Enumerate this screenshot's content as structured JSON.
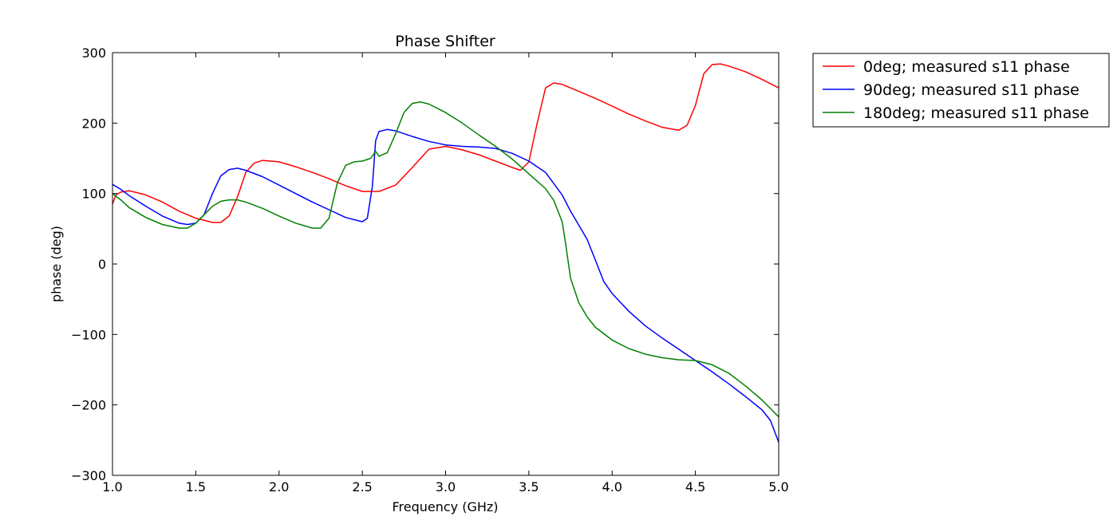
{
  "chart_data": {
    "type": "line",
    "title": "Phase Shifter",
    "xlabel": "Frequency (GHz)",
    "ylabel": "phase (deg)",
    "xlim": [
      1.0,
      5.0
    ],
    "ylim": [
      -300,
      300
    ],
    "x_ticks": [
      1.0,
      1.5,
      2.0,
      2.5,
      3.0,
      3.5,
      4.0,
      4.5,
      5.0
    ],
    "x_tick_labels": [
      "1.0",
      "1.5",
      "2.0",
      "2.5",
      "3.0",
      "3.5",
      "4.0",
      "4.5",
      "5.0"
    ],
    "y_ticks": [
      300,
      200,
      100,
      0,
      -100,
      -200,
      -300
    ],
    "y_tick_labels": [
      "300",
      "200",
      "100",
      "0",
      "−100",
      "−200",
      "−300"
    ],
    "grid": false,
    "legend_position": "outside-right-top",
    "series": [
      {
        "name": "0deg; measured s11 phase",
        "color": "#ff0000",
        "points": [
          [
            1.0,
            85
          ],
          [
            1.02,
            98
          ],
          [
            1.05,
            102
          ],
          [
            1.1,
            104
          ],
          [
            1.2,
            98
          ],
          [
            1.3,
            88
          ],
          [
            1.4,
            75
          ],
          [
            1.5,
            65
          ],
          [
            1.6,
            59
          ],
          [
            1.65,
            59
          ],
          [
            1.7,
            68
          ],
          [
            1.75,
            95
          ],
          [
            1.8,
            130
          ],
          [
            1.85,
            143
          ],
          [
            1.9,
            147
          ],
          [
            2.0,
            145
          ],
          [
            2.1,
            138
          ],
          [
            2.2,
            130
          ],
          [
            2.3,
            121
          ],
          [
            2.4,
            111
          ],
          [
            2.5,
            103
          ],
          [
            2.6,
            103
          ],
          [
            2.7,
            112
          ],
          [
            2.8,
            137
          ],
          [
            2.9,
            163
          ],
          [
            3.0,
            167
          ],
          [
            3.1,
            162
          ],
          [
            3.2,
            155
          ],
          [
            3.3,
            146
          ],
          [
            3.4,
            137
          ],
          [
            3.45,
            133
          ],
          [
            3.5,
            145
          ],
          [
            3.55,
            200
          ],
          [
            3.6,
            250
          ],
          [
            3.65,
            257
          ],
          [
            3.7,
            255
          ],
          [
            3.8,
            245
          ],
          [
            3.9,
            235
          ],
          [
            4.0,
            224
          ],
          [
            4.1,
            213
          ],
          [
            4.2,
            203
          ],
          [
            4.3,
            194
          ],
          [
            4.4,
            190
          ],
          [
            4.45,
            197
          ],
          [
            4.5,
            225
          ],
          [
            4.55,
            270
          ],
          [
            4.6,
            283
          ],
          [
            4.65,
            284
          ],
          [
            4.7,
            281
          ],
          [
            4.8,
            273
          ],
          [
            4.9,
            262
          ],
          [
            5.0,
            250
          ]
        ]
      },
      {
        "name": "90deg; measured s11 phase",
        "color": "#0000ff",
        "points": [
          [
            1.0,
            113
          ],
          [
            1.05,
            106
          ],
          [
            1.1,
            97
          ],
          [
            1.2,
            82
          ],
          [
            1.3,
            68
          ],
          [
            1.4,
            58
          ],
          [
            1.45,
            56
          ],
          [
            1.5,
            58
          ],
          [
            1.55,
            70
          ],
          [
            1.6,
            100
          ],
          [
            1.65,
            125
          ],
          [
            1.7,
            134
          ],
          [
            1.75,
            136
          ],
          [
            1.8,
            133
          ],
          [
            1.9,
            124
          ],
          [
            2.0,
            112
          ],
          [
            2.1,
            100
          ],
          [
            2.2,
            88
          ],
          [
            2.3,
            77
          ],
          [
            2.4,
            66
          ],
          [
            2.5,
            60
          ],
          [
            2.53,
            65
          ],
          [
            2.56,
            110
          ],
          [
            2.58,
            175
          ],
          [
            2.6,
            188
          ],
          [
            2.65,
            191
          ],
          [
            2.7,
            189
          ],
          [
            2.8,
            181
          ],
          [
            2.9,
            174
          ],
          [
            3.0,
            169
          ],
          [
            3.1,
            167
          ],
          [
            3.2,
            166
          ],
          [
            3.3,
            164
          ],
          [
            3.4,
            157
          ],
          [
            3.5,
            146
          ],
          [
            3.6,
            130
          ],
          [
            3.7,
            98
          ],
          [
            3.75,
            75
          ],
          [
            3.8,
            55
          ],
          [
            3.85,
            35
          ],
          [
            3.9,
            5
          ],
          [
            3.95,
            -25
          ],
          [
            4.0,
            -42
          ],
          [
            4.1,
            -67
          ],
          [
            4.2,
            -88
          ],
          [
            4.3,
            -105
          ],
          [
            4.4,
            -121
          ],
          [
            4.5,
            -137
          ],
          [
            4.6,
            -153
          ],
          [
            4.7,
            -170
          ],
          [
            4.8,
            -188
          ],
          [
            4.9,
            -207
          ],
          [
            4.95,
            -222
          ],
          [
            5.0,
            -253
          ]
        ]
      },
      {
        "name": "180deg; measured s11 phase",
        "color": "#008000",
        "points": [
          [
            1.0,
            100
          ],
          [
            1.05,
            91
          ],
          [
            1.1,
            80
          ],
          [
            1.2,
            66
          ],
          [
            1.3,
            56
          ],
          [
            1.4,
            51
          ],
          [
            1.45,
            51
          ],
          [
            1.5,
            58
          ],
          [
            1.55,
            70
          ],
          [
            1.6,
            82
          ],
          [
            1.65,
            89
          ],
          [
            1.7,
            91
          ],
          [
            1.75,
            91
          ],
          [
            1.8,
            88
          ],
          [
            1.9,
            79
          ],
          [
            2.0,
            68
          ],
          [
            2.1,
            58
          ],
          [
            2.2,
            51
          ],
          [
            2.25,
            51
          ],
          [
            2.3,
            65
          ],
          [
            2.35,
            115
          ],
          [
            2.4,
            140
          ],
          [
            2.45,
            145
          ],
          [
            2.5,
            146
          ],
          [
            2.55,
            150
          ],
          [
            2.58,
            160
          ],
          [
            2.6,
            153
          ],
          [
            2.65,
            158
          ],
          [
            2.7,
            185
          ],
          [
            2.75,
            215
          ],
          [
            2.8,
            228
          ],
          [
            2.85,
            230
          ],
          [
            2.9,
            227
          ],
          [
            3.0,
            215
          ],
          [
            3.1,
            200
          ],
          [
            3.2,
            183
          ],
          [
            3.3,
            167
          ],
          [
            3.4,
            149
          ],
          [
            3.5,
            128
          ],
          [
            3.6,
            107
          ],
          [
            3.65,
            90
          ],
          [
            3.7,
            60
          ],
          [
            3.72,
            30
          ],
          [
            3.75,
            -20
          ],
          [
            3.8,
            -55
          ],
          [
            3.85,
            -75
          ],
          [
            3.9,
            -90
          ],
          [
            4.0,
            -108
          ],
          [
            4.1,
            -120
          ],
          [
            4.2,
            -128
          ],
          [
            4.3,
            -133
          ],
          [
            4.4,
            -136
          ],
          [
            4.5,
            -137
          ],
          [
            4.6,
            -143
          ],
          [
            4.7,
            -155
          ],
          [
            4.8,
            -173
          ],
          [
            4.9,
            -193
          ],
          [
            4.95,
            -205
          ],
          [
            5.0,
            -217
          ]
        ]
      }
    ]
  }
}
